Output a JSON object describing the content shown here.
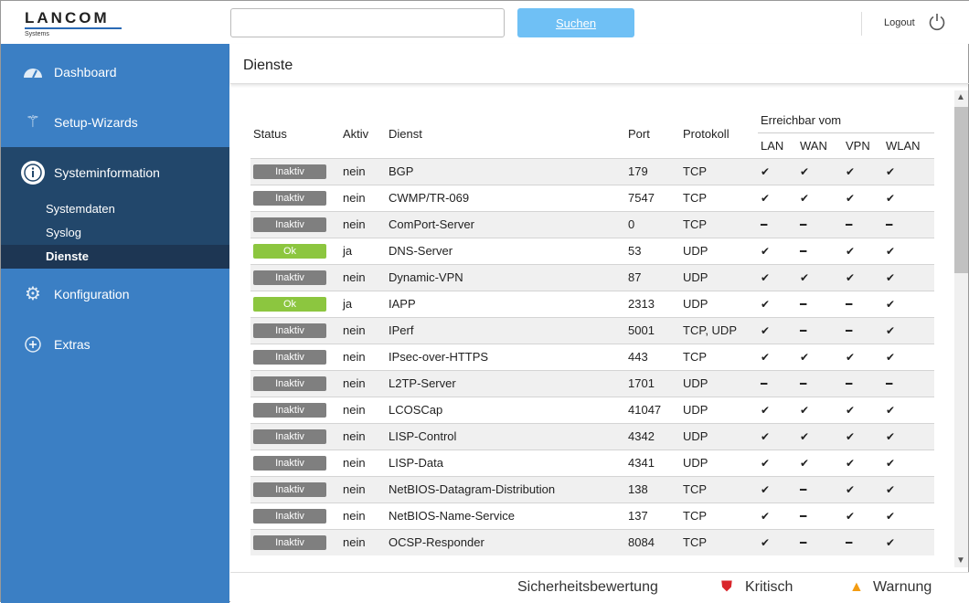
{
  "header": {
    "logo": "LANCOM",
    "logo_sub": "Systems",
    "search_placeholder": "",
    "search_button": "Suchen",
    "logout": "Logout"
  },
  "sidebar": {
    "items": [
      {
        "label": "Dashboard",
        "icon": "gauge-icon"
      },
      {
        "label": "Setup-Wizards",
        "icon": "magic-wand-icon"
      },
      {
        "label": "Systeminformation",
        "icon": "info-icon"
      },
      {
        "label": "Konfiguration",
        "icon": "gear-icon"
      },
      {
        "label": "Extras",
        "icon": "crosshair-icon"
      }
    ],
    "subitems": [
      "Systemdaten",
      "Syslog",
      "Dienste"
    ],
    "selected": "Dienste"
  },
  "page": {
    "title": "Dienste"
  },
  "table": {
    "headers": {
      "status": "Status",
      "aktiv": "Aktiv",
      "dienst": "Dienst",
      "port": "Port",
      "protokoll": "Protokoll",
      "group": "Erreichbar vom",
      "lan": "LAN",
      "wan": "WAN",
      "vpn": "VPN",
      "wlan": "WLAN"
    },
    "rows": [
      {
        "status": "Inaktiv",
        "aktiv": "nein",
        "dienst": "BGP",
        "port": "179",
        "proto": "TCP",
        "r": [
          1,
          1,
          1,
          1
        ]
      },
      {
        "status": "Inaktiv",
        "aktiv": "nein",
        "dienst": "CWMP/TR-069",
        "port": "7547",
        "proto": "TCP",
        "r": [
          1,
          1,
          1,
          1
        ]
      },
      {
        "status": "Inaktiv",
        "aktiv": "nein",
        "dienst": "ComPort-Server",
        "port": "0",
        "proto": "TCP",
        "r": [
          0,
          0,
          0,
          0
        ]
      },
      {
        "status": "Ok",
        "aktiv": "ja",
        "dienst": "DNS-Server",
        "port": "53",
        "proto": "UDP",
        "r": [
          1,
          0,
          1,
          1
        ]
      },
      {
        "status": "Inaktiv",
        "aktiv": "nein",
        "dienst": "Dynamic-VPN",
        "port": "87",
        "proto": "UDP",
        "r": [
          1,
          1,
          1,
          1
        ]
      },
      {
        "status": "Ok",
        "aktiv": "ja",
        "dienst": "IAPP",
        "port": "2313",
        "proto": "UDP",
        "r": [
          1,
          0,
          0,
          1
        ]
      },
      {
        "status": "Inaktiv",
        "aktiv": "nein",
        "dienst": "IPerf",
        "port": "5001",
        "proto": "TCP, UDP",
        "r": [
          1,
          0,
          0,
          1
        ]
      },
      {
        "status": "Inaktiv",
        "aktiv": "nein",
        "dienst": "IPsec-over-HTTPS",
        "port": "443",
        "proto": "TCP",
        "r": [
          1,
          1,
          1,
          1
        ]
      },
      {
        "status": "Inaktiv",
        "aktiv": "nein",
        "dienst": "L2TP-Server",
        "port": "1701",
        "proto": "UDP",
        "r": [
          0,
          0,
          0,
          0
        ]
      },
      {
        "status": "Inaktiv",
        "aktiv": "nein",
        "dienst": "LCOSCap",
        "port": "41047",
        "proto": "UDP",
        "r": [
          1,
          1,
          1,
          1
        ]
      },
      {
        "status": "Inaktiv",
        "aktiv": "nein",
        "dienst": "LISP-Control",
        "port": "4342",
        "proto": "UDP",
        "r": [
          1,
          1,
          1,
          1
        ]
      },
      {
        "status": "Inaktiv",
        "aktiv": "nein",
        "dienst": "LISP-Data",
        "port": "4341",
        "proto": "UDP",
        "r": [
          1,
          1,
          1,
          1
        ]
      },
      {
        "status": "Inaktiv",
        "aktiv": "nein",
        "dienst": "NetBIOS-Datagram-Distribution",
        "port": "138",
        "proto": "TCP",
        "r": [
          1,
          0,
          1,
          1
        ]
      },
      {
        "status": "Inaktiv",
        "aktiv": "nein",
        "dienst": "NetBIOS-Name-Service",
        "port": "137",
        "proto": "TCP",
        "r": [
          1,
          0,
          1,
          1
        ]
      },
      {
        "status": "Inaktiv",
        "aktiv": "nein",
        "dienst": "OCSP-Responder",
        "port": "8084",
        "proto": "TCP",
        "r": [
          1,
          0,
          0,
          1
        ]
      }
    ]
  },
  "footer": {
    "label": "Sicherheitsbewertung",
    "critical": "Kritisch",
    "warning": "Warnung"
  },
  "colors": {
    "sidebar": "#3b7fc4",
    "ok": "#8cc63f",
    "inactive": "#7f7f7f",
    "critical": "#d9262c",
    "warning": "#f39c12"
  }
}
